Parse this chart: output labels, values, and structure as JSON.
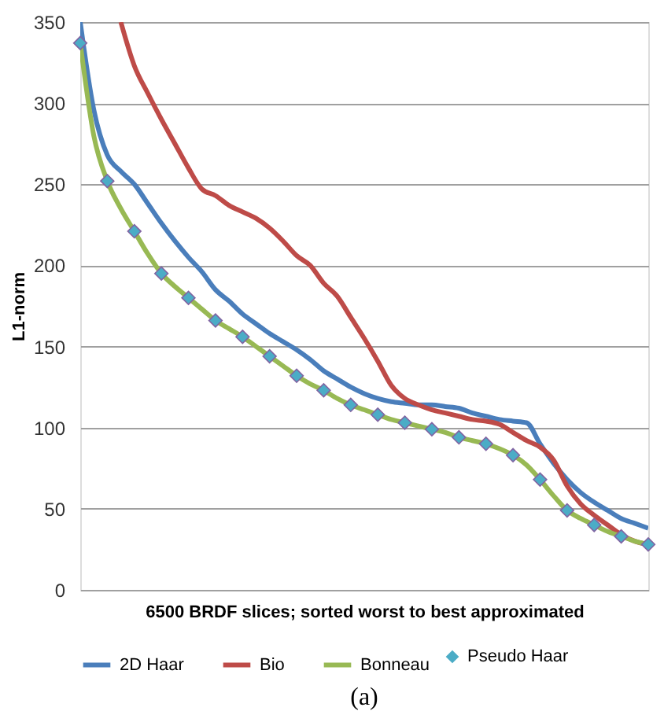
{
  "chart_data": {
    "type": "line",
    "xlabel": "6500 BRDF slices; sorted worst to best approximated",
    "ylabel": "L1-norm",
    "categories": [
      null,
      null,
      null,
      null,
      null,
      null,
      null,
      null,
      null,
      null,
      null,
      null,
      null,
      null,
      null,
      null,
      null,
      null,
      null,
      null,
      null,
      null,
      null,
      null,
      null,
      null,
      null,
      null,
      null,
      null,
      null,
      null,
      null,
      null,
      null,
      null,
      null,
      null,
      null,
      null,
      null,
      null,
      null
    ],
    "series": [
      {
        "name": "2D Haar",
        "color": "#4a7ebb",
        "values": [
          350,
          296,
          268,
          258,
          250,
          238,
          226,
          215,
          205,
          196,
          185,
          178,
          170,
          164,
          158,
          153,
          148,
          142,
          135,
          130,
          125,
          121,
          118,
          116,
          115,
          114,
          114,
          113,
          112,
          109,
          107,
          105,
          104,
          103,
          90,
          78,
          68,
          60,
          54,
          49,
          44,
          41,
          38
        ]
      },
      {
        "name": "Bio",
        "color": "#be4b48",
        "values": [
          null,
          null,
          null,
          350,
          323,
          306,
          290,
          275,
          260,
          247,
          243,
          237,
          233,
          229,
          223,
          215,
          206,
          200,
          189,
          181,
          168,
          155,
          141,
          126,
          118,
          114,
          111,
          109,
          107,
          105,
          104,
          102,
          97,
          92,
          88,
          80,
          64,
          53,
          46,
          40,
          34,
          30,
          28
        ]
      },
      {
        "name": "Bonneau",
        "color": "#98b954",
        "values": [
          337,
          280,
          252,
          235,
          221,
          207,
          195,
          187,
          180,
          173,
          166,
          161,
          156,
          150,
          144,
          138,
          132,
          127,
          123,
          118,
          114,
          111,
          108,
          105,
          103,
          101,
          99,
          97,
          94,
          92,
          90,
          87,
          83,
          77,
          68,
          58,
          49,
          44,
          40,
          36,
          33,
          30,
          28
        ]
      },
      {
        "name": "Pseudo Haar",
        "color": "#4bacc6",
        "type": "scatter",
        "marker": "diamond",
        "values": [
          337,
          null,
          252,
          null,
          221,
          null,
          195,
          null,
          180,
          null,
          166,
          null,
          156,
          null,
          144,
          null,
          132,
          null,
          123,
          null,
          114,
          null,
          108,
          null,
          103,
          null,
          99,
          null,
          94,
          null,
          90,
          null,
          83,
          null,
          68,
          null,
          49,
          null,
          40,
          null,
          33,
          null,
          28
        ]
      }
    ],
    "ylim": [
      0,
      350
    ],
    "yticks": [
      0,
      50,
      100,
      150,
      200,
      250,
      300,
      350
    ],
    "grid": "y",
    "legend": "bottom",
    "line_style": "solid",
    "annotations": [
      "(a)"
    ]
  }
}
